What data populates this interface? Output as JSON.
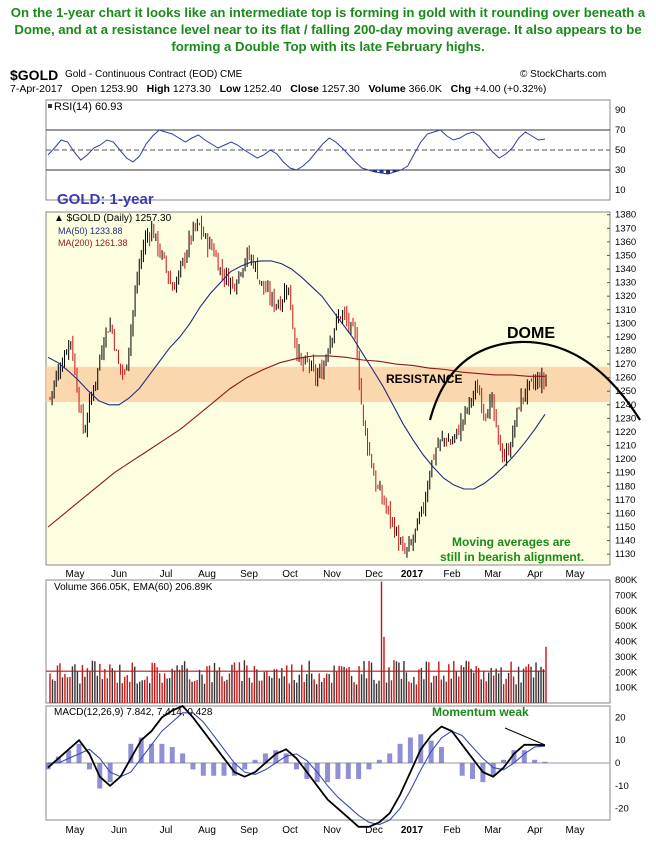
{
  "caption": "On the 1-year chart it looks like an intermediate top is forming in gold with it rounding over beneath a Dome, and at a resistance level near to its flat / falling 200-day moving average. It also appears to be forming a Double Top with its late February highs.",
  "header": {
    "symbol": "$GOLD",
    "name": "Gold - Continuous Contract (EOD) CME",
    "source": "© StockCharts.com",
    "date": "7-Apr-2017",
    "open_label": "Open",
    "open": "1253.90",
    "high_label": "High",
    "high": "1273.30",
    "low_label": "Low",
    "low": "1252.40",
    "close_label": "Close",
    "close": "1257.30",
    "volume_label": "Volume",
    "volume": "366.0K",
    "chg_label": "Chg",
    "chg": "+4.00 (+0.32%)"
  },
  "colors": {
    "title_green": "#1a8a1a",
    "annotation_blue": "#3b3bb3",
    "resistance_band": "#fbd3a8",
    "panel_fill": "#fdfde0",
    "ma50": "#1f2d7a",
    "ma200": "#8b1a1a",
    "price_up": "#000000",
    "price_down": "#c81414",
    "rsi_line": "#2f3fa0",
    "macd_hist": "#6a6ac8"
  },
  "chart_data": [
    {
      "type": "line",
      "panel": "RSI",
      "title": "RSI(14) 60.93",
      "ylim": [
        0,
        100
      ],
      "y_ticks": [
        10,
        30,
        50,
        70,
        90
      ],
      "reference_lines": [
        30,
        50,
        70
      ],
      "series": [
        {
          "name": "RSI(14)",
          "last": 60.93,
          "values": [
            45,
            52,
            60,
            58,
            48,
            40,
            45,
            52,
            55,
            60,
            58,
            50,
            42,
            38,
            44,
            56,
            64,
            70,
            68,
            66,
            62,
            58,
            62,
            65,
            60,
            56,
            52,
            55,
            58,
            55,
            50,
            46,
            42,
            45,
            50,
            46,
            38,
            32,
            30,
            34,
            40,
            48,
            56,
            62,
            58,
            52,
            45,
            38,
            32,
            30,
            28,
            27,
            26,
            28,
            30,
            34,
            46,
            58,
            66,
            68,
            70,
            64,
            60,
            62,
            66,
            68,
            64,
            56,
            48,
            42,
            46,
            52,
            62,
            68,
            64,
            60,
            61
          ]
        }
      ]
    },
    {
      "type": "candlestick",
      "panel": "Price",
      "title": "$GOLD (Daily) 1257.30",
      "panel_label": "GOLD: 1-year",
      "ylim": [
        1122,
        1382
      ],
      "y_ticks": [
        1130,
        1140,
        1150,
        1160,
        1170,
        1180,
        1190,
        1200,
        1210,
        1220,
        1230,
        1240,
        1250,
        1260,
        1270,
        1280,
        1290,
        1300,
        1310,
        1320,
        1330,
        1340,
        1350,
        1360,
        1370,
        1380
      ],
      "x_ticks": [
        "May",
        "Jun",
        "Jul",
        "Aug",
        "Sep",
        "Oct",
        "Nov",
        "Dec",
        "2017",
        "Feb",
        "Mar",
        "Apr",
        "May"
      ],
      "series": [
        {
          "name": "$GOLD (Daily)",
          "last": 1257.3,
          "values": [
            1245,
            1262,
            1275,
            1290,
            1252,
            1218,
            1245,
            1265,
            1292,
            1300,
            1270,
            1262,
            1300,
            1340,
            1362,
            1370,
            1355,
            1342,
            1325,
            1336,
            1352,
            1368,
            1372,
            1360,
            1355,
            1340,
            1334,
            1328,
            1340,
            1350,
            1345,
            1330,
            1322,
            1315,
            1316,
            1330,
            1288,
            1268,
            1272,
            1260,
            1264,
            1285,
            1300,
            1308,
            1298,
            1290,
            1230,
            1205,
            1180,
            1170,
            1158,
            1145,
            1130,
            1135,
            1150,
            1165,
            1195,
            1210,
            1215,
            1212,
            1220,
            1232,
            1245,
            1252,
            1234,
            1242,
            1212,
            1200,
            1216,
            1240,
            1250,
            1255,
            1258,
            1257
          ]
        },
        {
          "name": "MA(50)",
          "last": 1233.88,
          "values": [
            1275,
            1271,
            1265,
            1258,
            1250,
            1243,
            1240,
            1240,
            1245,
            1252,
            1262,
            1272,
            1282,
            1290,
            1300,
            1312,
            1322,
            1330,
            1338,
            1342,
            1345,
            1346,
            1346,
            1344,
            1340,
            1334,
            1327,
            1320,
            1310,
            1300,
            1290,
            1278,
            1266,
            1254,
            1240,
            1226,
            1214,
            1203,
            1194,
            1186,
            1181,
            1178,
            1178,
            1182,
            1188,
            1195,
            1203,
            1212,
            1222,
            1233
          ]
        },
        {
          "name": "MA(200)",
          "last": 1261.38,
          "values": [
            1150,
            1160,
            1170,
            1180,
            1190,
            1198,
            1206,
            1214,
            1222,
            1232,
            1242,
            1252,
            1260,
            1266,
            1271,
            1274,
            1276,
            1276,
            1275,
            1273,
            1272,
            1270,
            1269,
            1267,
            1266,
            1264,
            1263,
            1262,
            1262,
            1261,
            1261
          ]
        }
      ],
      "annotations": [
        "DOME",
        "RESISTANCE",
        "Moving averages are",
        "still in bearish alignment."
      ],
      "resistance_band": [
        1242,
        1268
      ]
    },
    {
      "type": "bar",
      "panel": "Volume",
      "title": "Volume 366.05K, EMA(60) 206.89K",
      "ylim": [
        0,
        800000
      ],
      "y_ticks": [
        "100K",
        "200K",
        "300K",
        "400K",
        "500K",
        "600K",
        "700K",
        "800K"
      ],
      "series": [
        {
          "name": "Volume",
          "last": 366050
        },
        {
          "name": "EMA(60)",
          "last": 206890
        }
      ]
    },
    {
      "type": "line",
      "panel": "MACD",
      "title": "MACD(12,26,9) 7.842, 7.414, 0.428",
      "annotation": "Momentum weak",
      "ylim": [
        -25,
        25
      ],
      "y_ticks": [
        -20,
        -10,
        0,
        10,
        20
      ],
      "series": [
        {
          "name": "MACD(12,26,9)",
          "last": 7.842,
          "values": [
            -2,
            2,
            6,
            10,
            4,
            -6,
            -10,
            -6,
            2,
            10,
            14,
            20,
            23,
            25,
            20,
            14,
            8,
            2,
            -4,
            -6,
            -4,
            0,
            4,
            6,
            2,
            -4,
            -10,
            -16,
            -20,
            -24,
            -28,
            -28,
            -26,
            -22,
            -14,
            -4,
            6,
            12,
            16,
            14,
            8,
            2,
            -4,
            -6,
            -2,
            4,
            8,
            8,
            7.8
          ]
        },
        {
          "name": "Signal",
          "last": 7.414,
          "values": [
            0,
            0,
            2,
            4,
            6,
            2,
            -4,
            -6,
            -4,
            2,
            8,
            14,
            18,
            22,
            22,
            18,
            12,
            6,
            0,
            -4,
            -5,
            -3,
            0,
            3,
            4,
            1,
            -4,
            -10,
            -15,
            -19,
            -23,
            -26,
            -27,
            -25,
            -20,
            -12,
            -3,
            5,
            11,
            14,
            12,
            7,
            2,
            -2,
            -3,
            0,
            4,
            7,
            7.4
          ]
        }
      ]
    }
  ]
}
